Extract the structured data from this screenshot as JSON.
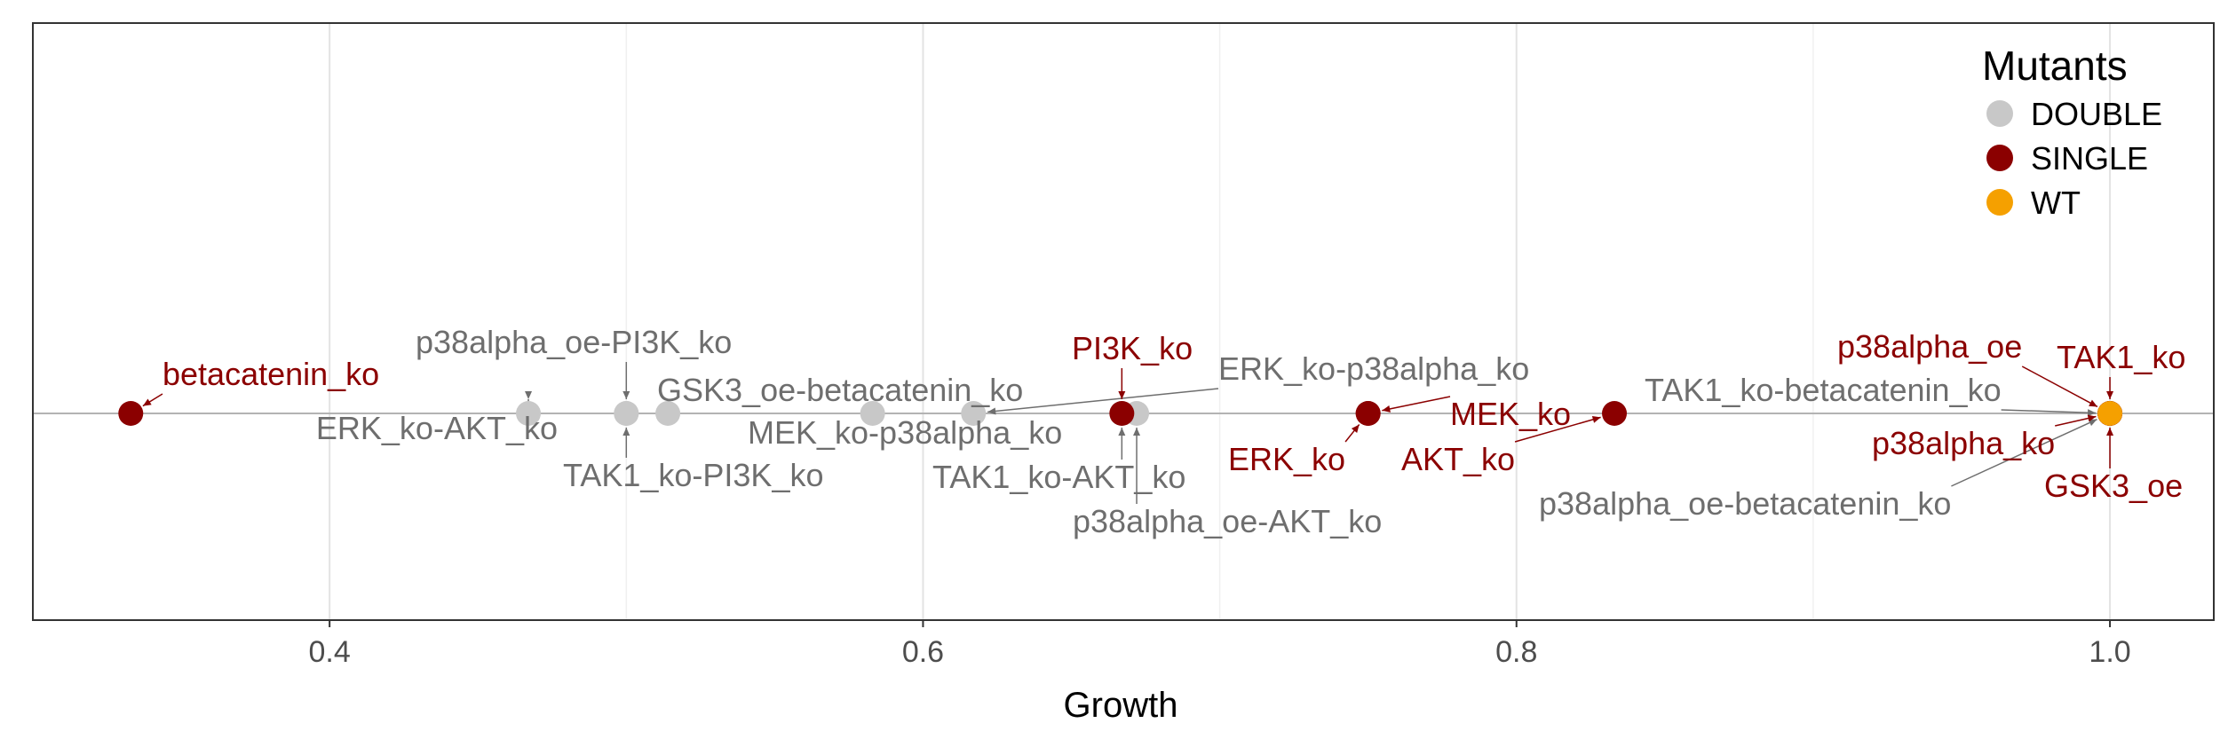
{
  "chart_data": {
    "type": "scatter",
    "xlabel": "Growth",
    "xlim": [
      0.3,
      1.035
    ],
    "x_ticks": [
      0.4,
      0.6,
      0.8,
      1.0
    ],
    "x_tick_labels": [
      "0.4",
      "0.6",
      "0.8",
      "1.0"
    ],
    "grid": true,
    "legend": {
      "title": "Mutants",
      "position": "top-right",
      "entries": [
        {
          "name": "DOUBLE",
          "color": "#c8c8c8"
        },
        {
          "name": "SINGLE",
          "color": "#8b0000"
        },
        {
          "name": "WT",
          "color": "#f5a000"
        }
      ]
    },
    "label_colors": {
      "DOUBLE": "#6e6e6e",
      "SINGLE": "#8b0000",
      "WT": "#8b0000"
    },
    "points": [
      {
        "label": "betacatenin_ko",
        "x": 0.333,
        "group": "SINGLE"
      },
      {
        "label": "ERK_ko-AKT_ko",
        "x": 0.467,
        "group": "DOUBLE"
      },
      {
        "label": "p38alpha_oe-PI3K_ko",
        "x": 0.5,
        "group": "DOUBLE"
      },
      {
        "label": "TAK1_ko-PI3K_ko",
        "x": 0.5,
        "group": "DOUBLE"
      },
      {
        "label": "GSK3_oe-betacatenin_ko",
        "x": 0.514,
        "group": "DOUBLE"
      },
      {
        "label": "MEK_ko-p38alpha_ko",
        "x": 0.583,
        "group": "DOUBLE"
      },
      {
        "label": "ERK_ko-p38alpha_ko",
        "x": 0.617,
        "group": "DOUBLE"
      },
      {
        "label": "TAK1_ko-AKT_ko",
        "x": 0.667,
        "group": "DOUBLE"
      },
      {
        "label": "p38alpha_oe-AKT_ko",
        "x": 0.672,
        "group": "DOUBLE"
      },
      {
        "label": "PI3K_ko",
        "x": 0.667,
        "group": "SINGLE"
      },
      {
        "label": "ERK_ko",
        "x": 0.75,
        "group": "SINGLE"
      },
      {
        "label": "MEK_ko",
        "x": 0.75,
        "group": "SINGLE"
      },
      {
        "label": "AKT_ko",
        "x": 0.833,
        "group": "SINGLE"
      },
      {
        "label": "TAK1_ko-betacatenin_ko",
        "x": 1.0,
        "group": "DOUBLE"
      },
      {
        "label": "p38alpha_oe-betacatenin_ko",
        "x": 1.0,
        "group": "DOUBLE"
      },
      {
        "label": "p38alpha_oe",
        "x": 1.0,
        "group": "SINGLE"
      },
      {
        "label": "TAK1_ko",
        "x": 1.0,
        "group": "SINGLE"
      },
      {
        "label": "p38alpha_ko",
        "x": 1.0,
        "group": "SINGLE"
      },
      {
        "label": "GSK3_oe",
        "x": 1.0,
        "group": "SINGLE"
      },
      {
        "label": "WT",
        "x": 1.0,
        "group": "WT"
      }
    ]
  }
}
